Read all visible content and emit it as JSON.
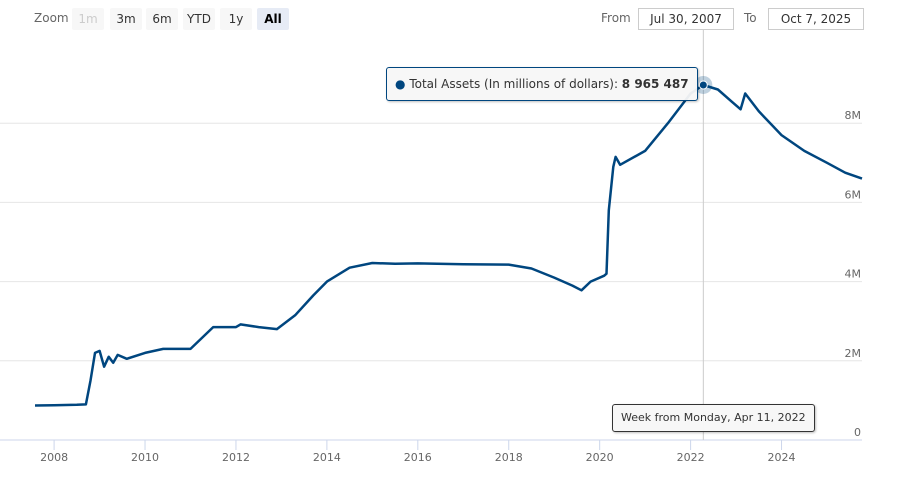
{
  "range_selector": {
    "zoom_label": "Zoom",
    "buttons": [
      {
        "label": "1m",
        "state": "disabled"
      },
      {
        "label": "3m",
        "state": "normal"
      },
      {
        "label": "6m",
        "state": "normal"
      },
      {
        "label": "YTD",
        "state": "normal"
      },
      {
        "label": "1y",
        "state": "normal"
      },
      {
        "label": "All",
        "state": "selected"
      }
    ],
    "from_label": "From",
    "from_value": "Jul 30, 2007",
    "to_label": "To",
    "to_value": "Oct 7, 2025"
  },
  "tooltip": {
    "series_name": "Total Assets (In millions of dollars)",
    "value": "8 965 487",
    "x_label": "Week from Monday, Apr 11, 2022"
  },
  "chart_data": {
    "type": "line",
    "series": [
      {
        "name": "Total Assets (In millions of dollars)",
        "color": "#00467f",
        "x": [
          2007.58,
          2008.0,
          2008.5,
          2008.7,
          2008.8,
          2008.9,
          2009.0,
          2009.1,
          2009.2,
          2009.3,
          2009.4,
          2009.6,
          2010.0,
          2010.4,
          2011.0,
          2011.5,
          2012.0,
          2012.1,
          2012.5,
          2012.9,
          2013.3,
          2013.7,
          2014.0,
          2014.5,
          2015.0,
          2015.5,
          2016.0,
          2017.0,
          2018.0,
          2018.5,
          2019.0,
          2019.4,
          2019.6,
          2019.8,
          2020.1,
          2020.15,
          2020.2,
          2020.3,
          2020.35,
          2020.45,
          2021.0,
          2021.5,
          2022.0,
          2022.28,
          2022.6,
          2022.9,
          2023.1,
          2023.2,
          2023.5,
          2024.0,
          2024.5,
          2025.0,
          2025.4,
          2025.77
        ],
        "y": [
          0.87,
          0.88,
          0.89,
          0.9,
          1.5,
          2.2,
          2.25,
          1.85,
          2.1,
          1.95,
          2.15,
          2.05,
          2.2,
          2.3,
          2.3,
          2.85,
          2.85,
          2.92,
          2.85,
          2.8,
          3.15,
          3.65,
          4.0,
          4.35,
          4.47,
          4.45,
          4.46,
          4.44,
          4.43,
          4.33,
          4.1,
          3.9,
          3.78,
          4.0,
          4.15,
          4.2,
          5.8,
          6.9,
          7.15,
          6.95,
          7.3,
          8.0,
          8.75,
          8.965,
          8.85,
          8.55,
          8.35,
          8.75,
          8.3,
          7.7,
          7.3,
          7.0,
          6.75,
          6.6
        ]
      }
    ],
    "xticks": [
      "2008",
      "2010",
      "2012",
      "2014",
      "2016",
      "2018",
      "2020",
      "2022",
      "2024"
    ],
    "yticks": [
      "0",
      "2M",
      "4M",
      "6M",
      "8M"
    ],
    "xlim": [
      2007.58,
      2025.77
    ],
    "ylim": [
      0,
      10
    ],
    "grid": "horizontal",
    "crosshair_x": 2022.28
  }
}
